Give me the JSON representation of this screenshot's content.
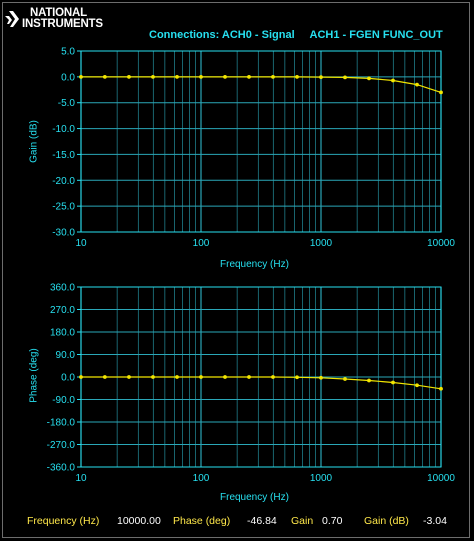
{
  "header": {
    "logo_line1": "NATIONAL",
    "logo_line2": "INSTRUMENTS",
    "connections": "Connections: ACH0 - Signal     ACH1 - FGEN FUNC_OUT"
  },
  "colors": {
    "background": "#000000",
    "axis_text": "#27e0f0",
    "grid": "#2aa7b8",
    "trace": "#f2e600",
    "readout_label": "#ffe84a"
  },
  "chart_data": [
    {
      "type": "line",
      "xscale": "log",
      "xlabel": "Frequency (Hz)",
      "ylabel": "Gain (dB)",
      "xlim": [
        10,
        10000
      ],
      "ylim": [
        -30.0,
        5.0
      ],
      "x_ticks": [
        "10",
        "100",
        "1000",
        "10000"
      ],
      "y_ticks": [
        "5.0",
        "0.0",
        "-5.0",
        "-10.0",
        "-15.0",
        "-20.0",
        "-25.0",
        "-30.0"
      ],
      "grid": true,
      "series": [
        {
          "x": [
            10,
            15.8,
            25.1,
            39.8,
            63.1,
            100,
            158.5,
            251.2,
            398.1,
            631,
            1000,
            1585,
            2512,
            3981,
            6310,
            10000
          ],
          "values": [
            0.0,
            0.0,
            0.0,
            0.0,
            0.0,
            0.0,
            0.0,
            0.0,
            0.0,
            0.0,
            -0.05,
            -0.1,
            -0.3,
            -0.7,
            -1.5,
            -3.0
          ]
        }
      ]
    },
    {
      "type": "line",
      "xscale": "log",
      "xlabel": "Frequency (Hz)",
      "ylabel": "Phase (deg)",
      "xlim": [
        10,
        10000
      ],
      "ylim": [
        -360.0,
        360.0
      ],
      "x_ticks": [
        "10",
        "100",
        "1000",
        "10000"
      ],
      "y_ticks": [
        "360.0",
        "270.0",
        "180.0",
        "90.0",
        "0.0",
        "-90.0",
        "-180.0",
        "-270.0",
        "-360.0"
      ],
      "grid": true,
      "series": [
        {
          "x": [
            10,
            15.8,
            25.1,
            39.8,
            63.1,
            100,
            158.5,
            251.2,
            398.1,
            631,
            1000,
            1585,
            2512,
            3981,
            6310,
            10000
          ],
          "values": [
            0,
            0,
            0,
            0,
            0,
            0,
            0,
            0,
            0,
            -1,
            -3,
            -8,
            -14,
            -22,
            -33,
            -47
          ]
        }
      ]
    }
  ],
  "readout": {
    "freq_label": "Frequency (Hz)",
    "freq_value": "10000.00",
    "phase_label": "Phase (deg)",
    "phase_value": "-46.84",
    "gain_label": "Gain",
    "gain_value": "0.70",
    "gaindb_label": "Gain (dB)",
    "gaindb_value": "-3.04"
  }
}
